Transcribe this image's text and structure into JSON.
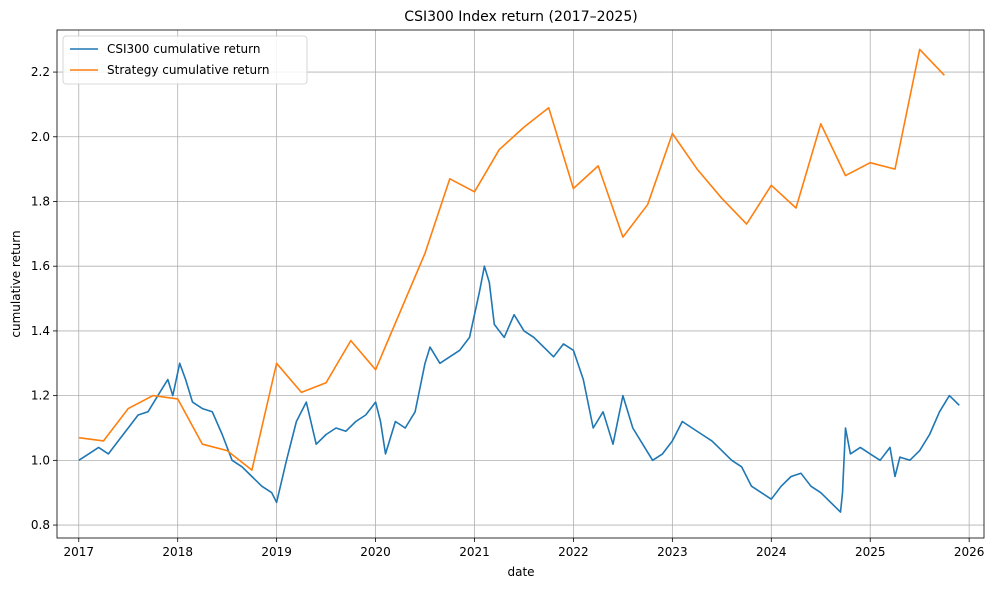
{
  "chart_data": {
    "type": "line",
    "title": "CSI300 Index return (2017–2025)",
    "xlabel": "date",
    "ylabel": "cumulative return",
    "xlim": [
      2016.78,
      2026.15
    ],
    "ylim": [
      0.76,
      2.33
    ],
    "xticks": [
      2017,
      2018,
      2019,
      2020,
      2021,
      2022,
      2023,
      2024,
      2025,
      2026
    ],
    "xtick_labels": [
      "2017",
      "2018",
      "2019",
      "2020",
      "2021",
      "2022",
      "2023",
      "2024",
      "2025",
      "2026"
    ],
    "yticks": [
      0.8,
      1.0,
      1.2,
      1.4,
      1.6,
      1.8,
      2.0,
      2.2
    ],
    "ytick_labels": [
      "0.8",
      "1.0",
      "1.2",
      "1.4",
      "1.6",
      "1.8",
      "2.0",
      "2.2"
    ],
    "grid": true,
    "legend_position": "top-left",
    "series": [
      {
        "name": "CSI300 cumulative return",
        "color": "#1f77b4",
        "x": [
          2017.0,
          2017.1,
          2017.2,
          2017.3,
          2017.4,
          2017.5,
          2017.6,
          2017.7,
          2017.8,
          2017.9,
          2017.95,
          2018.02,
          2018.08,
          2018.15,
          2018.25,
          2018.35,
          2018.45,
          2018.55,
          2018.65,
          2018.75,
          2018.85,
          2018.95,
          2019.0,
          2019.1,
          2019.2,
          2019.3,
          2019.4,
          2019.5,
          2019.6,
          2019.7,
          2019.8,
          2019.9,
          2020.0,
          2020.05,
          2020.1,
          2020.2,
          2020.3,
          2020.4,
          2020.5,
          2020.55,
          2020.65,
          2020.75,
          2020.85,
          2020.95,
          2021.05,
          2021.1,
          2021.15,
          2021.2,
          2021.3,
          2021.4,
          2021.5,
          2021.6,
          2021.7,
          2021.8,
          2021.9,
          2022.0,
          2022.1,
          2022.2,
          2022.3,
          2022.4,
          2022.5,
          2022.6,
          2022.7,
          2022.8,
          2022.9,
          2023.0,
          2023.1,
          2023.2,
          2023.3,
          2023.4,
          2023.5,
          2023.6,
          2023.7,
          2023.8,
          2023.9,
          2024.0,
          2024.1,
          2024.2,
          2024.3,
          2024.4,
          2024.5,
          2024.6,
          2024.7,
          2024.72,
          2024.75,
          2024.8,
          2024.9,
          2025.0,
          2025.1,
          2025.2,
          2025.25,
          2025.3,
          2025.4,
          2025.5,
          2025.6,
          2025.7,
          2025.8,
          2025.9
        ],
        "values": [
          1.0,
          1.02,
          1.04,
          1.02,
          1.06,
          1.1,
          1.14,
          1.15,
          1.2,
          1.25,
          1.2,
          1.3,
          1.25,
          1.18,
          1.16,
          1.15,
          1.08,
          1.0,
          0.98,
          0.95,
          0.92,
          0.9,
          0.87,
          1.0,
          1.12,
          1.18,
          1.05,
          1.08,
          1.1,
          1.09,
          1.12,
          1.14,
          1.18,
          1.12,
          1.02,
          1.12,
          1.1,
          1.15,
          1.3,
          1.35,
          1.3,
          1.32,
          1.34,
          1.38,
          1.52,
          1.6,
          1.55,
          1.42,
          1.38,
          1.45,
          1.4,
          1.38,
          1.35,
          1.32,
          1.36,
          1.34,
          1.25,
          1.1,
          1.15,
          1.05,
          1.2,
          1.1,
          1.05,
          1.0,
          1.02,
          1.06,
          1.12,
          1.1,
          1.08,
          1.06,
          1.03,
          1.0,
          0.98,
          0.92,
          0.9,
          0.88,
          0.92,
          0.95,
          0.96,
          0.92,
          0.9,
          0.87,
          0.84,
          0.9,
          1.1,
          1.02,
          1.04,
          1.02,
          1.0,
          1.04,
          0.95,
          1.01,
          1.0,
          1.03,
          1.08,
          1.15,
          1.2,
          1.17
        ]
      },
      {
        "name": "Strategy cumulative return",
        "color": "#ff7f0e",
        "x": [
          2017.0,
          2017.25,
          2017.5,
          2017.75,
          2018.0,
          2018.25,
          2018.5,
          2018.75,
          2019.0,
          2019.25,
          2019.5,
          2019.75,
          2020.0,
          2020.25,
          2020.5,
          2020.75,
          2021.0,
          2021.25,
          2021.5,
          2021.75,
          2022.0,
          2022.25,
          2022.5,
          2022.75,
          2023.0,
          2023.25,
          2023.5,
          2023.75,
          2024.0,
          2024.25,
          2024.5,
          2024.75,
          2025.0,
          2025.25,
          2025.5,
          2025.75
        ],
        "values": [
          1.07,
          1.06,
          1.16,
          1.2,
          1.19,
          1.05,
          1.03,
          0.97,
          1.3,
          1.21,
          1.24,
          1.37,
          1.28,
          1.46,
          1.64,
          1.87,
          1.83,
          1.96,
          2.03,
          2.09,
          1.84,
          1.91,
          1.69,
          1.79,
          2.01,
          1.9,
          1.81,
          1.73,
          1.85,
          1.78,
          2.04,
          1.88,
          1.92,
          1.9,
          2.27,
          2.19
        ]
      }
    ]
  }
}
